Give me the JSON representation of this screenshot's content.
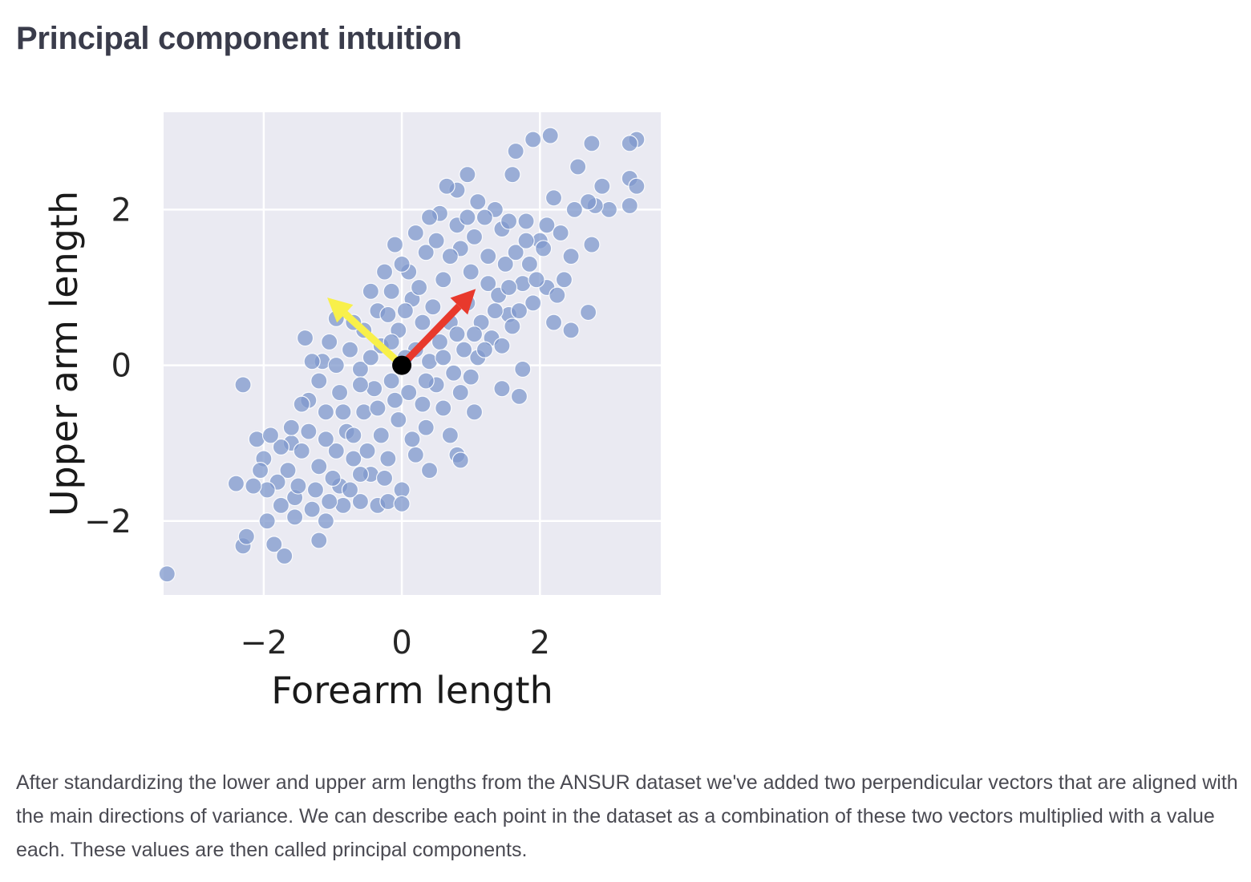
{
  "page": {
    "title": "Principal component intuition",
    "caption": "After standardizing the lower and upper arm lengths from the ANSUR dataset we've added two perpendicular vectors that are aligned with the main directions of variance. We can describe each point in the dataset as a combination of these two vectors multiplied with a value each. These values are then called principal components."
  },
  "chart_data": {
    "type": "scatter",
    "title": "",
    "xlabel": "Forearm length",
    "ylabel": "Upper arm length",
    "xlim": [
      -3.45,
      3.75
    ],
    "ylim": [
      -2.95,
      3.25
    ],
    "xticks": [
      -2,
      0,
      2
    ],
    "yticks": [
      -2,
      0,
      2
    ],
    "xtick_labels": [
      "−2",
      "0",
      "2"
    ],
    "ytick_labels": [
      "−2",
      "0",
      "2"
    ],
    "grid": true,
    "background_color": "#eaeaf2",
    "grid_color": "#ffffff",
    "point_color": "#7f98cc",
    "point_alpha": 0.75,
    "vectors": [
      {
        "color": "#f8f04a",
        "from": [
          0,
          0
        ],
        "to": [
          -1.08,
          0.87
        ]
      },
      {
        "color": "#e8392c",
        "from": [
          0,
          0
        ],
        "to": [
          1.07,
          0.98
        ]
      }
    ],
    "origin_marker": {
      "x": 0,
      "y": 0,
      "color": "#000000"
    },
    "points": [
      [
        -3.4,
        -2.68
      ],
      [
        -2.3,
        -0.25
      ],
      [
        -2.4,
        -1.52
      ],
      [
        -2.3,
        -2.32
      ],
      [
        -2.25,
        -2.2
      ],
      [
        -2.1,
        -0.95
      ],
      [
        -2.0,
        -1.2
      ],
      [
        -1.95,
        -2.0
      ],
      [
        -1.85,
        -2.3
      ],
      [
        -1.7,
        -2.45
      ],
      [
        -1.6,
        -1.0
      ],
      [
        -1.55,
        -1.7
      ],
      [
        -1.35,
        -0.45
      ],
      [
        -1.3,
        -1.85
      ],
      [
        -1.2,
        -2.25
      ],
      [
        -1.1,
        -2.0
      ],
      [
        -1.4,
        0.35
      ],
      [
        -1.15,
        0.05
      ],
      [
        -0.95,
        0.6
      ],
      [
        -0.9,
        -1.55
      ],
      [
        -0.6,
        -1.75
      ],
      [
        -0.35,
        -1.8
      ],
      [
        -0.2,
        -1.75
      ],
      [
        0.0,
        -1.6
      ],
      [
        0.0,
        -1.78
      ],
      [
        0.2,
        -1.15
      ],
      [
        0.35,
        -0.8
      ],
      [
        0.4,
        -1.35
      ],
      [
        0.7,
        -0.9
      ],
      [
        0.8,
        -1.15
      ],
      [
        0.85,
        -1.22
      ],
      [
        1.05,
        -0.6
      ],
      [
        1.45,
        -0.3
      ],
      [
        1.7,
        -0.4
      ],
      [
        1.75,
        -0.05
      ],
      [
        1.5,
        1.3
      ],
      [
        0.95,
        2.45
      ],
      [
        0.8,
        2.25
      ],
      [
        1.1,
        2.1
      ],
      [
        1.6,
        2.45
      ],
      [
        1.65,
        2.75
      ],
      [
        1.9,
        2.9
      ],
      [
        2.15,
        2.95
      ],
      [
        2.75,
        2.85
      ],
      [
        2.55,
        2.55
      ],
      [
        3.4,
        2.9
      ],
      [
        3.3,
        2.85
      ],
      [
        3.3,
        2.4
      ],
      [
        3.4,
        2.3
      ],
      [
        3.3,
        2.05
      ],
      [
        3.0,
        2.0
      ],
      [
        2.8,
        2.05
      ],
      [
        2.9,
        2.3
      ],
      [
        2.7,
        2.1
      ],
      [
        2.5,
        2.0
      ],
      [
        2.2,
        2.15
      ],
      [
        2.1,
        1.8
      ],
      [
        2.0,
        1.6
      ],
      [
        2.45,
        1.4
      ],
      [
        2.75,
        1.55
      ],
      [
        2.45,
        0.45
      ],
      [
        2.7,
        0.68
      ],
      [
        2.2,
        0.55
      ],
      [
        2.35,
        1.1
      ],
      [
        2.1,
        1.0
      ],
      [
        1.9,
        0.8
      ],
      [
        1.75,
        1.05
      ],
      [
        1.65,
        1.45
      ],
      [
        1.8,
        1.85
      ],
      [
        1.45,
        1.75
      ],
      [
        1.35,
        2.0
      ],
      [
        1.2,
        1.9
      ],
      [
        0.55,
        1.95
      ],
      [
        0.65,
        2.3
      ],
      [
        0.4,
        1.9
      ],
      [
        -0.1,
        1.55
      ],
      [
        0.1,
        1.2
      ],
      [
        0.35,
        1.45
      ],
      [
        0.6,
        1.1
      ],
      [
        0.85,
        1.5
      ],
      [
        1.0,
        1.2
      ],
      [
        1.25,
        1.05
      ],
      [
        1.4,
        0.9
      ],
      [
        1.55,
        0.65
      ],
      [
        1.3,
        0.35
      ],
      [
        1.1,
        0.1
      ],
      [
        0.9,
        0.2
      ],
      [
        0.75,
        -0.1
      ],
      [
        0.55,
        0.3
      ],
      [
        0.3,
        0.55
      ],
      [
        0.15,
        0.85
      ],
      [
        -0.15,
        0.95
      ],
      [
        -0.35,
        0.7
      ],
      [
        -0.55,
        0.45
      ],
      [
        -0.75,
        0.2
      ],
      [
        -0.6,
        -0.05
      ],
      [
        -0.4,
        -0.3
      ],
      [
        -0.15,
        -0.2
      ],
      [
        0.1,
        -0.35
      ],
      [
        0.3,
        -0.5
      ],
      [
        0.5,
        -0.25
      ],
      [
        0.2,
        0.2
      ],
      [
        -0.05,
        0.45
      ],
      [
        -0.3,
        0.25
      ],
      [
        -0.9,
        -0.35
      ],
      [
        -1.1,
        -0.6
      ],
      [
        -0.8,
        -0.85
      ],
      [
        -0.55,
        -0.6
      ],
      [
        -0.3,
        -0.9
      ],
      [
        -0.05,
        -0.7
      ],
      [
        0.15,
        -0.95
      ],
      [
        -0.2,
        -1.2
      ],
      [
        -0.45,
        -1.4
      ],
      [
        -0.7,
        -1.2
      ],
      [
        -0.95,
        -1.1
      ],
      [
        -1.2,
        -1.3
      ],
      [
        -1.45,
        -1.1
      ],
      [
        -1.65,
        -1.35
      ],
      [
        -1.8,
        -1.5
      ],
      [
        -1.95,
        -1.6
      ],
      [
        -1.5,
        -1.55
      ],
      [
        -1.25,
        -1.6
      ],
      [
        -1.0,
        -1.45
      ],
      [
        -0.75,
        -1.6
      ],
      [
        -0.5,
        -1.1
      ],
      [
        -1.05,
        0.3
      ],
      [
        -1.3,
        0.05
      ],
      [
        -1.2,
        -0.2
      ],
      [
        -0.95,
        0.0
      ],
      [
        -0.7,
        0.55
      ],
      [
        -0.45,
        0.95
      ],
      [
        -0.2,
        0.65
      ],
      [
        0.05,
        0.7
      ],
      [
        0.25,
        1.0
      ],
      [
        0.45,
        0.75
      ],
      [
        0.7,
        0.55
      ],
      [
        0.95,
        0.8
      ],
      [
        1.15,
        0.55
      ],
      [
        1.35,
        0.7
      ],
      [
        1.55,
        1.0
      ],
      [
        1.25,
        1.4
      ],
      [
        1.05,
        1.65
      ],
      [
        0.8,
        1.8
      ],
      [
        0.5,
        1.6
      ],
      [
        0.2,
        1.7
      ],
      [
        0.0,
        1.3
      ],
      [
        -0.25,
        1.2
      ],
      [
        0.6,
        -0.55
      ],
      [
        0.85,
        -0.35
      ],
      [
        1.0,
        -0.15
      ],
      [
        0.4,
        0.05
      ],
      [
        0.05,
        0.1
      ],
      [
        -0.15,
        0.3
      ],
      [
        -0.45,
        0.1
      ],
      [
        -0.6,
        -0.25
      ],
      [
        -0.85,
        -0.6
      ],
      [
        -0.35,
        -0.55
      ],
      [
        -0.1,
        -0.45
      ],
      [
        0.35,
        -0.2
      ],
      [
        0.6,
        0.1
      ],
      [
        0.8,
        0.4
      ],
      [
        1.05,
        0.4
      ],
      [
        1.2,
        0.2
      ],
      [
        1.45,
        0.25
      ],
      [
        1.6,
        0.5
      ],
      [
        -1.6,
        -0.8
      ],
      [
        -1.45,
        -0.5
      ],
      [
        -1.75,
        -1.05
      ],
      [
        -2.05,
        -1.35
      ],
      [
        -1.9,
        -0.9
      ],
      [
        -1.35,
        -0.85
      ],
      [
        -1.1,
        -0.95
      ],
      [
        -0.7,
        -0.9
      ],
      [
        -0.25,
        -1.45
      ],
      [
        -0.85,
        -1.8
      ],
      [
        -1.55,
        -1.95
      ],
      [
        -1.75,
        -1.8
      ],
      [
        -2.15,
        -1.55
      ],
      [
        -1.05,
        -1.75
      ],
      [
        -0.6,
        -1.4
      ],
      [
        1.85,
        1.3
      ],
      [
        2.05,
        1.5
      ],
      [
        2.3,
        1.7
      ],
      [
        1.95,
        1.1
      ],
      [
        1.7,
        0.7
      ],
      [
        2.25,
        0.9
      ],
      [
        1.8,
        1.6
      ],
      [
        1.55,
        1.85
      ],
      [
        0.95,
        1.9
      ],
      [
        0.7,
        1.4
      ]
    ]
  }
}
